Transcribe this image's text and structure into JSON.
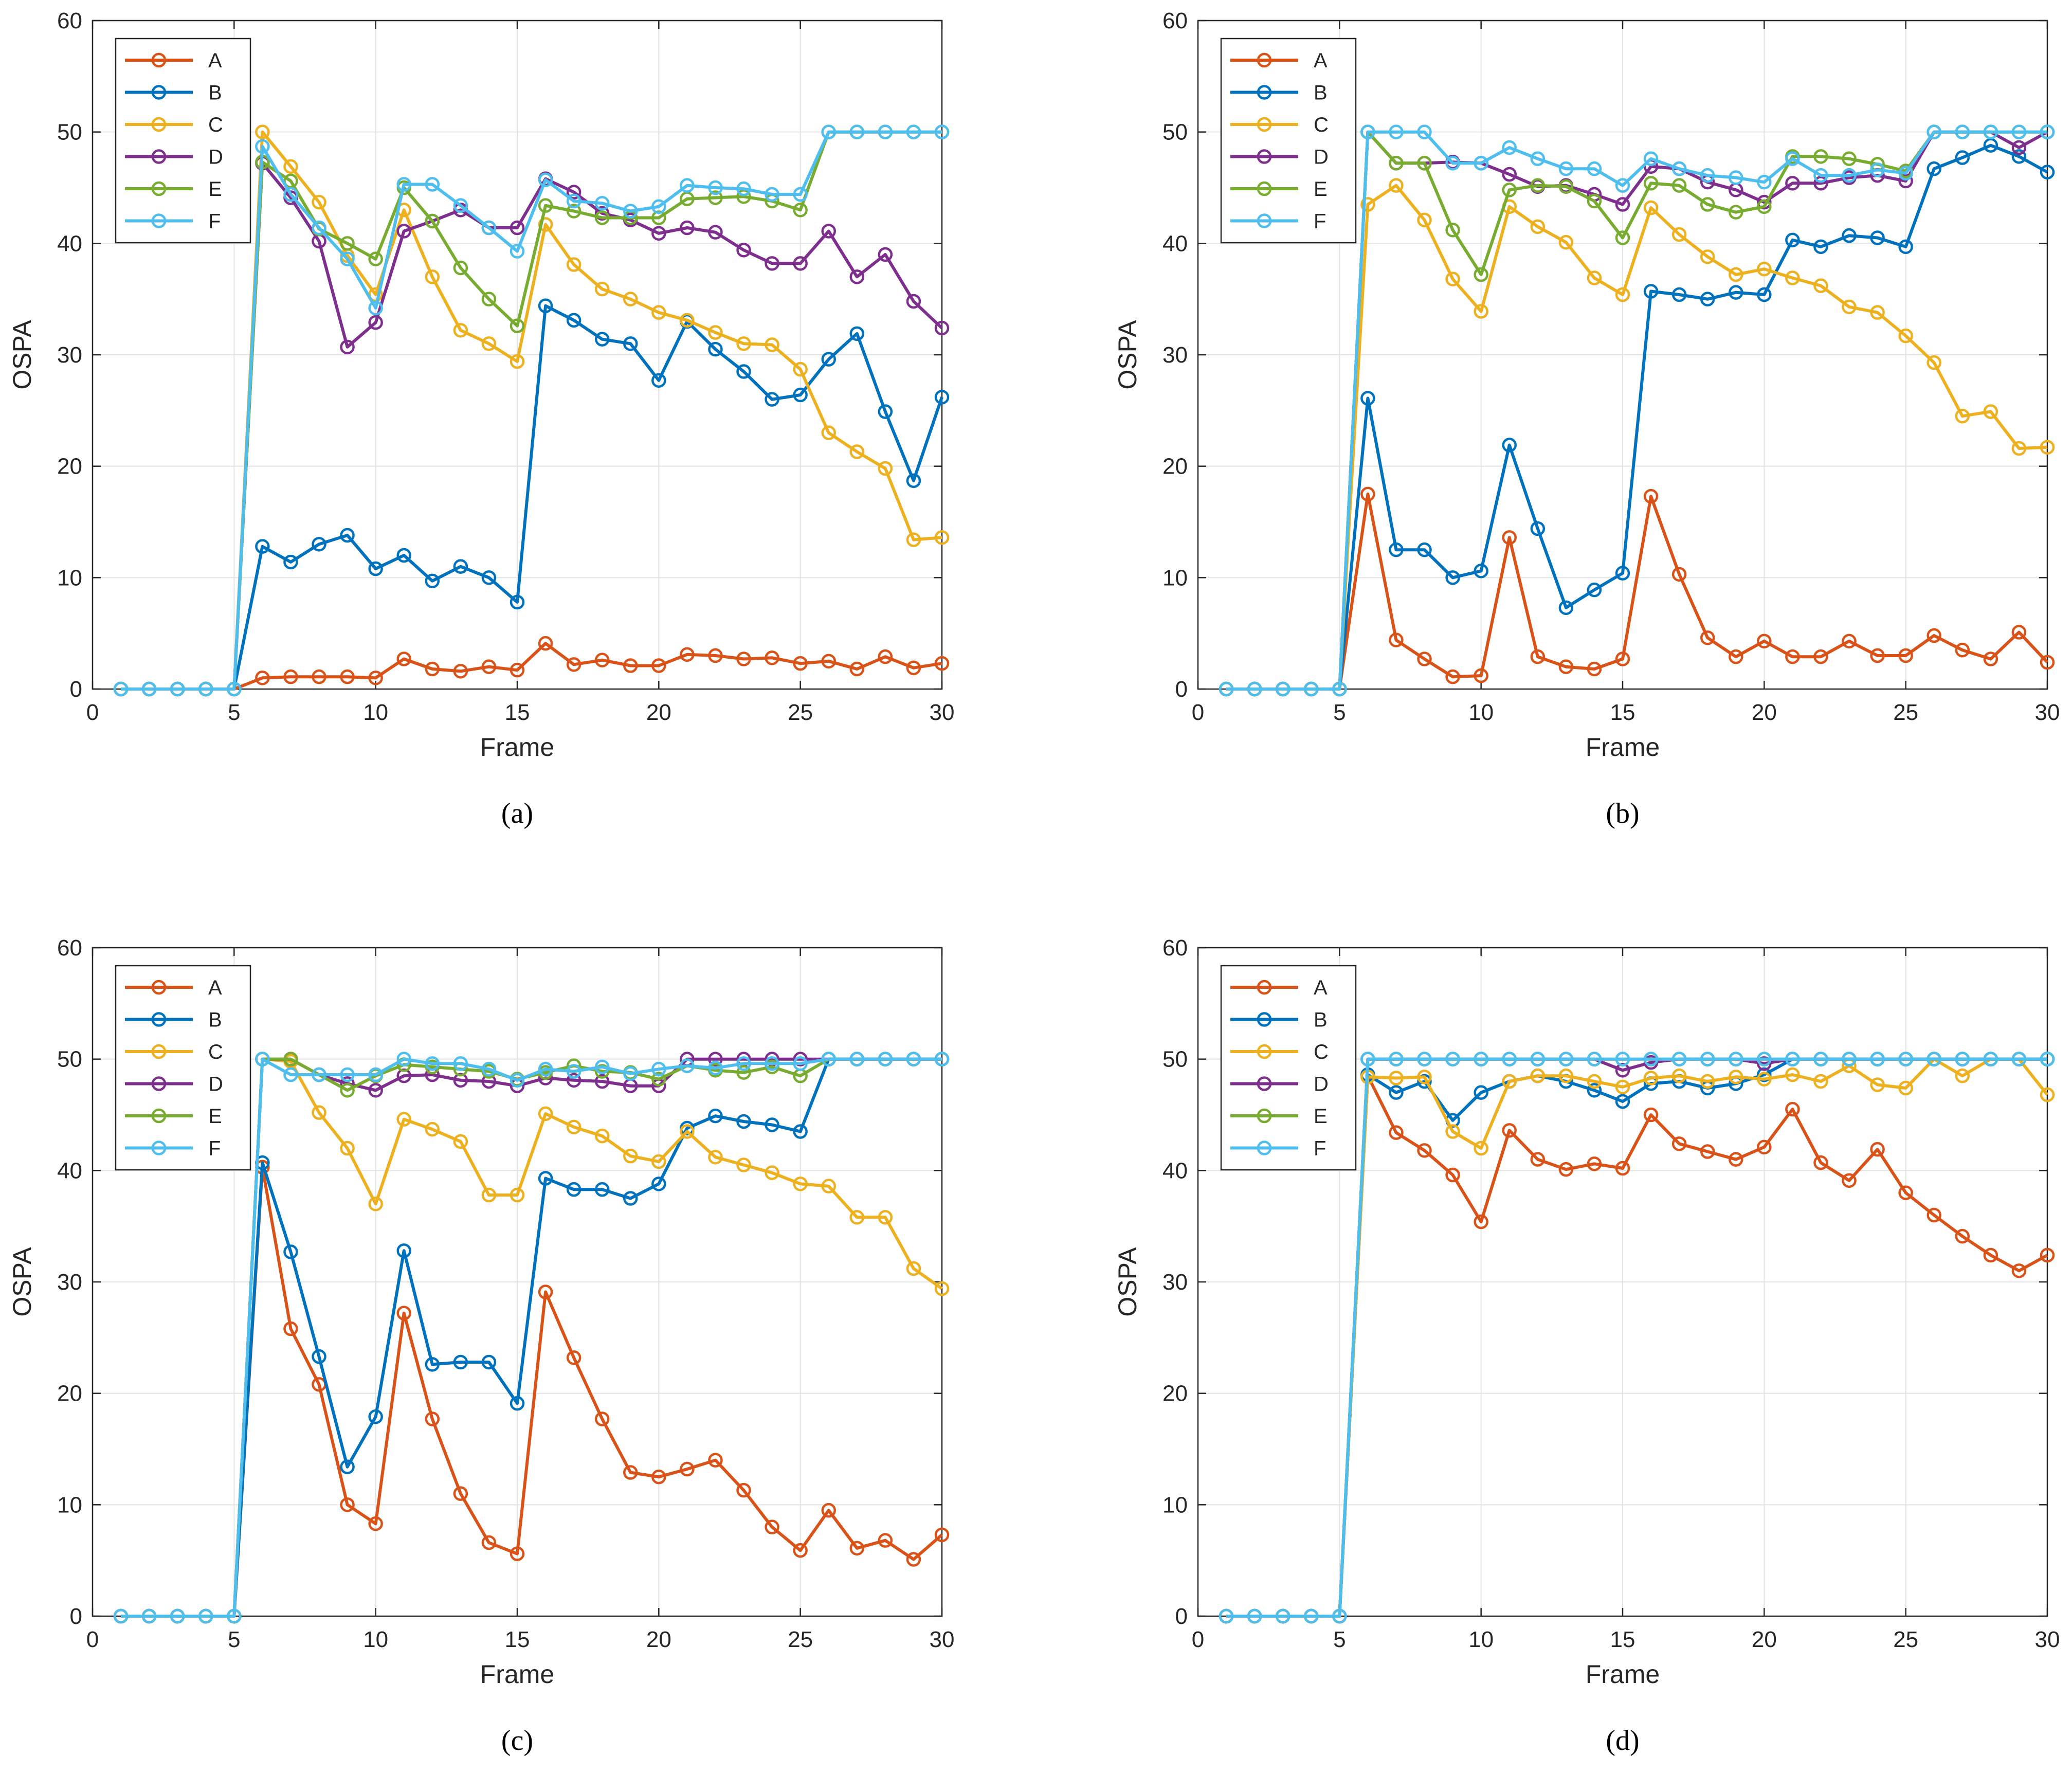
{
  "legend_labels": [
    "A",
    "B",
    "C",
    "D",
    "E",
    "F"
  ],
  "series_colors": {
    "A": "#D95319",
    "B": "#0072BD",
    "C": "#EDB120",
    "D": "#7E2F8E",
    "E": "#77AC30",
    "F": "#4DBEEE"
  },
  "chart_data": [
    {
      "type": "line",
      "caption": "(a)",
      "xlabel": "Frame",
      "ylabel": "OSPA",
      "xlim": [
        0,
        30
      ],
      "ylim": [
        0,
        60
      ],
      "xticks": [
        0,
        5,
        10,
        15,
        20,
        25,
        30
      ],
      "yticks": [
        0,
        10,
        20,
        30,
        40,
        50,
        60
      ],
      "x": [
        1,
        2,
        3,
        4,
        5,
        6,
        7,
        8,
        9,
        10,
        11,
        12,
        13,
        14,
        15,
        16,
        17,
        18,
        19,
        20,
        21,
        22,
        23,
        24,
        25,
        26,
        27,
        28,
        29,
        30
      ],
      "series": [
        {
          "name": "A",
          "values": [
            0,
            0,
            0,
            0,
            0,
            1.0,
            1.1,
            1.1,
            1.1,
            1.0,
            2.7,
            1.8,
            1.6,
            2.0,
            1.7,
            4.1,
            2.2,
            2.6,
            2.1,
            2.1,
            3.1,
            3.0,
            2.7,
            2.8,
            2.3,
            2.5,
            1.8,
            2.9,
            1.9,
            2.3
          ]
        },
        {
          "name": "B",
          "values": [
            0,
            0,
            0,
            0,
            0,
            12.8,
            11.4,
            13.0,
            13.8,
            10.8,
            12.0,
            9.7,
            11.0,
            10.0,
            7.8,
            34.4,
            33.1,
            31.4,
            31.0,
            27.7,
            33.0,
            30.5,
            28.5,
            26.0,
            26.4,
            29.6,
            31.9,
            24.9,
            18.7,
            26.2
          ]
        },
        {
          "name": "C",
          "values": [
            0,
            0,
            0,
            0,
            0,
            50.0,
            46.9,
            43.7,
            38.9,
            35.4,
            43.0,
            37.0,
            32.2,
            31.0,
            29.4,
            41.7,
            38.1,
            35.9,
            35.0,
            33.8,
            33.1,
            32.0,
            31.0,
            30.9,
            28.7,
            23.0,
            21.3,
            19.8,
            13.4,
            13.6
          ]
        },
        {
          "name": "D",
          "values": [
            0,
            0,
            0,
            0,
            0,
            47.2,
            44.1,
            40.2,
            30.7,
            32.9,
            41.1,
            42.0,
            43.0,
            41.4,
            41.4,
            45.8,
            44.6,
            42.7,
            42.1,
            40.9,
            41.4,
            41.0,
            39.4,
            38.2,
            38.2,
            41.1,
            37.0,
            39.0,
            34.8,
            32.4
          ]
        },
        {
          "name": "E",
          "values": [
            0,
            0,
            0,
            0,
            0,
            47.3,
            45.6,
            41.3,
            40.0,
            38.6,
            45.0,
            42.0,
            37.8,
            35.0,
            32.6,
            43.4,
            42.9,
            42.3,
            42.3,
            42.3,
            44.0,
            44.1,
            44.2,
            43.8,
            43.0,
            50.0,
            50.0,
            50.0,
            50.0,
            50.0
          ]
        },
        {
          "name": "F",
          "values": [
            0,
            0,
            0,
            0,
            0,
            48.7,
            44.4,
            41.4,
            38.6,
            34.2,
            45.3,
            45.3,
            43.4,
            41.4,
            39.3,
            45.7,
            43.8,
            43.6,
            42.9,
            43.3,
            45.2,
            45.0,
            44.9,
            44.4,
            44.4,
            50.0,
            50.0,
            50.0,
            50.0,
            50.0
          ]
        }
      ]
    },
    {
      "type": "line",
      "caption": "(b)",
      "xlabel": "Frame",
      "ylabel": "OSPA",
      "xlim": [
        0,
        30
      ],
      "ylim": [
        0,
        60
      ],
      "xticks": [
        0,
        5,
        10,
        15,
        20,
        25,
        30
      ],
      "yticks": [
        0,
        10,
        20,
        30,
        40,
        50,
        60
      ],
      "x": [
        1,
        2,
        3,
        4,
        5,
        6,
        7,
        8,
        9,
        10,
        11,
        12,
        13,
        14,
        15,
        16,
        17,
        18,
        19,
        20,
        21,
        22,
        23,
        24,
        25,
        26,
        27,
        28,
        29,
        30
      ],
      "series": [
        {
          "name": "A",
          "values": [
            0,
            0,
            0,
            0,
            0,
            17.5,
            4.4,
            2.7,
            1.1,
            1.2,
            13.6,
            2.9,
            2.0,
            1.8,
            2.7,
            17.3,
            10.3,
            4.6,
            2.9,
            4.3,
            2.9,
            2.9,
            4.3,
            3.0,
            3.0,
            4.8,
            3.5,
            2.7,
            5.1,
            2.4
          ]
        },
        {
          "name": "B",
          "values": [
            0,
            0,
            0,
            0,
            0,
            26.1,
            12.5,
            12.5,
            10.0,
            10.6,
            21.9,
            14.4,
            7.3,
            8.9,
            10.4,
            35.7,
            35.4,
            35.0,
            35.6,
            35.4,
            40.3,
            39.7,
            40.7,
            40.5,
            39.7,
            46.7,
            47.7,
            48.8,
            47.8,
            46.4
          ]
        },
        {
          "name": "C",
          "values": [
            0,
            0,
            0,
            0,
            0,
            43.5,
            45.2,
            42.1,
            36.8,
            33.9,
            43.3,
            41.5,
            40.1,
            36.9,
            35.4,
            43.2,
            40.8,
            38.8,
            37.2,
            37.7,
            36.9,
            36.2,
            34.3,
            33.8,
            31.7,
            29.3,
            24.5,
            24.9,
            21.6,
            21.7
          ]
        },
        {
          "name": "D",
          "values": [
            0,
            0,
            0,
            0,
            0,
            50.0,
            47.2,
            47.2,
            47.3,
            47.2,
            46.2,
            45.1,
            45.2,
            44.4,
            43.5,
            46.9,
            46.7,
            45.5,
            44.8,
            43.7,
            45.4,
            45.4,
            45.9,
            46.1,
            45.6,
            50.0,
            50.0,
            50.0,
            48.6,
            50.0
          ]
        },
        {
          "name": "E",
          "values": [
            0,
            0,
            0,
            0,
            0,
            50.0,
            47.2,
            47.2,
            41.2,
            37.2,
            44.8,
            45.2,
            45.1,
            43.8,
            40.5,
            45.4,
            45.2,
            43.5,
            42.8,
            43.3,
            47.8,
            47.8,
            47.6,
            47.1,
            46.5,
            50.0,
            50.0,
            50.0,
            50.0,
            50.0
          ]
        },
        {
          "name": "F",
          "values": [
            0,
            0,
            0,
            0,
            0,
            50.0,
            50.0,
            50.0,
            47.2,
            47.2,
            48.6,
            47.6,
            46.7,
            46.7,
            45.2,
            47.6,
            46.7,
            46.1,
            45.9,
            45.5,
            47.6,
            46.1,
            46.1,
            46.6,
            46.3,
            50.0,
            50.0,
            50.0,
            50.0,
            50.0
          ]
        }
      ]
    },
    {
      "type": "line",
      "caption": "(c)",
      "xlabel": "Frame",
      "ylabel": "OSPA",
      "xlim": [
        0,
        30
      ],
      "ylim": [
        0,
        60
      ],
      "xticks": [
        0,
        5,
        10,
        15,
        20,
        25,
        30
      ],
      "yticks": [
        0,
        10,
        20,
        30,
        40,
        50,
        60
      ],
      "x": [
        1,
        2,
        3,
        4,
        5,
        6,
        7,
        8,
        9,
        10,
        11,
        12,
        13,
        14,
        15,
        16,
        17,
        18,
        19,
        20,
        21,
        22,
        23,
        24,
        25,
        26,
        27,
        28,
        29,
        30
      ],
      "series": [
        {
          "name": "A",
          "values": [
            0,
            0,
            0,
            0,
            0,
            40.3,
            25.8,
            20.8,
            10.0,
            8.3,
            27.2,
            17.7,
            11.0,
            6.6,
            5.6,
            29.1,
            23.2,
            17.7,
            12.9,
            12.5,
            13.2,
            14.0,
            11.3,
            8.0,
            5.9,
            9.5,
            6.1,
            6.8,
            5.1,
            7.3
          ]
        },
        {
          "name": "B",
          "values": [
            0,
            0,
            0,
            0,
            0,
            40.7,
            32.7,
            23.3,
            13.4,
            17.9,
            32.8,
            22.6,
            22.8,
            22.8,
            19.1,
            39.3,
            38.3,
            38.3,
            37.5,
            38.8,
            43.8,
            44.9,
            44.4,
            44.1,
            43.5,
            50.0,
            50.0,
            50.0,
            50.0,
            50.0
          ]
        },
        {
          "name": "C",
          "values": [
            0,
            0,
            0,
            0,
            0,
            50.0,
            49.8,
            45.2,
            42.0,
            37.0,
            44.6,
            43.7,
            42.6,
            37.8,
            37.8,
            45.1,
            43.9,
            43.1,
            41.3,
            40.8,
            43.5,
            41.2,
            40.5,
            39.8,
            38.8,
            38.6,
            35.8,
            35.8,
            31.2,
            29.4
          ]
        },
        {
          "name": "D",
          "values": [
            0,
            0,
            0,
            0,
            0,
            50.0,
            50.0,
            48.6,
            47.8,
            47.2,
            48.5,
            48.6,
            48.1,
            48.0,
            47.6,
            48.3,
            48.1,
            48.0,
            47.6,
            47.6,
            50.0,
            50.0,
            50.0,
            50.0,
            50.0,
            50.0,
            50.0,
            50.0,
            50.0,
            50.0
          ]
        },
        {
          "name": "E",
          "values": [
            0,
            0,
            0,
            0,
            0,
            50.0,
            50.0,
            48.6,
            47.2,
            48.5,
            49.5,
            49.3,
            49.1,
            48.9,
            48.2,
            48.8,
            49.4,
            48.9,
            48.8,
            48.2,
            49.4,
            49.0,
            48.8,
            49.3,
            48.5,
            50.0,
            50.0,
            50.0,
            50.0,
            50.0
          ]
        },
        {
          "name": "F",
          "values": [
            0,
            0,
            0,
            0,
            0,
            50.0,
            48.6,
            48.6,
            48.6,
            48.6,
            50.0,
            49.6,
            49.6,
            49.1,
            48.1,
            49.1,
            48.9,
            49.3,
            48.7,
            49.1,
            49.4,
            49.2,
            49.6,
            49.6,
            49.6,
            50.0,
            50.0,
            50.0,
            50.0,
            50.0
          ]
        }
      ]
    },
    {
      "type": "line",
      "caption": "(d)",
      "xlabel": "Frame",
      "ylabel": "OSPA",
      "xlim": [
        0,
        30
      ],
      "ylim": [
        0,
        60
      ],
      "xticks": [
        0,
        5,
        10,
        15,
        20,
        25,
        30
      ],
      "yticks": [
        0,
        10,
        20,
        30,
        40,
        50,
        60
      ],
      "x": [
        1,
        2,
        3,
        4,
        5,
        6,
        7,
        8,
        9,
        10,
        11,
        12,
        13,
        14,
        15,
        16,
        17,
        18,
        19,
        20,
        21,
        22,
        23,
        24,
        25,
        26,
        27,
        28,
        29,
        30
      ],
      "series": [
        {
          "name": "A",
          "values": [
            0,
            0,
            0,
            0,
            0,
            48.5,
            43.4,
            41.8,
            39.6,
            35.4,
            43.6,
            41.0,
            40.1,
            40.6,
            40.2,
            45.0,
            42.4,
            41.7,
            41.0,
            42.1,
            45.5,
            40.7,
            39.1,
            41.9,
            38.0,
            36.0,
            34.1,
            32.4,
            31.0,
            32.4
          ]
        },
        {
          "name": "B",
          "values": [
            0,
            0,
            0,
            0,
            0,
            48.6,
            47.0,
            48.0,
            44.5,
            47.0,
            48.0,
            48.5,
            48.0,
            47.2,
            46.2,
            47.8,
            48.0,
            47.4,
            47.8,
            48.6,
            50.0,
            50.0,
            50.0,
            50.0,
            50.0,
            50.0,
            50.0,
            50.0,
            50.0,
            50.0
          ]
        },
        {
          "name": "C",
          "values": [
            0,
            0,
            0,
            0,
            0,
            48.4,
            48.3,
            48.4,
            43.5,
            42.0,
            48.0,
            48.5,
            48.5,
            48.0,
            47.5,
            48.3,
            48.5,
            48.0,
            48.4,
            48.2,
            48.6,
            48.0,
            49.4,
            47.7,
            47.4,
            50.0,
            48.5,
            50.0,
            50.0,
            46.8
          ]
        },
        {
          "name": "D",
          "values": [
            0,
            0,
            0,
            0,
            0,
            50.0,
            50.0,
            50.0,
            50.0,
            50.0,
            50.0,
            50.0,
            50.0,
            50.0,
            49.0,
            49.7,
            50.0,
            50.0,
            50.0,
            49.6,
            50.0,
            50.0,
            50.0,
            50.0,
            50.0,
            50.0,
            50.0,
            50.0,
            50.0,
            50.0
          ]
        },
        {
          "name": "E",
          "values": [
            0,
            0,
            0,
            0,
            0,
            50.0,
            50.0,
            50.0,
            50.0,
            50.0,
            50.0,
            50.0,
            50.0,
            50.0,
            50.0,
            50.0,
            50.0,
            50.0,
            50.0,
            50.0,
            50.0,
            50.0,
            50.0,
            50.0,
            50.0,
            50.0,
            50.0,
            50.0,
            50.0,
            50.0
          ]
        },
        {
          "name": "F",
          "values": [
            0,
            0,
            0,
            0,
            0,
            50.0,
            50.0,
            50.0,
            50.0,
            50.0,
            50.0,
            50.0,
            50.0,
            50.0,
            50.0,
            50.0,
            50.0,
            50.0,
            50.0,
            50.0,
            50.0,
            50.0,
            50.0,
            50.0,
            50.0,
            50.0,
            50.0,
            50.0,
            50.0,
            50.0
          ]
        }
      ]
    }
  ]
}
